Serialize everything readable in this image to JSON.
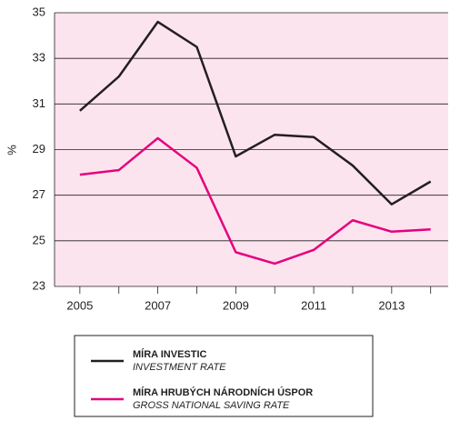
{
  "chart_data": {
    "type": "line",
    "ylabel": "%",
    "x": [
      2005,
      2006,
      2007,
      2008,
      2009,
      2010,
      2011,
      2012,
      2013,
      2014
    ],
    "series": [
      {
        "name": "MÍRA INVESTIC",
        "name_en": "INVESTMENT RATE",
        "color": "#231f20",
        "values": [
          30.7,
          32.2,
          34.6,
          33.5,
          28.7,
          29.65,
          29.55,
          28.3,
          26.6,
          27.6
        ]
      },
      {
        "name": "MÍRA HRUBÝCH NÁRODNÍCH ÚSPOR",
        "name_en": "GROSS NATIONAL SAVING RATE",
        "color": "#e6007e",
        "values": [
          27.9,
          28.1,
          29.5,
          28.2,
          24.5,
          24.0,
          24.6,
          25.9,
          25.4,
          25.5
        ]
      }
    ],
    "xlim": [
      2004.35,
      2014.45
    ],
    "xticks": [
      2005,
      2007,
      2009,
      2011,
      2013
    ],
    "xminorticks": [
      2006,
      2008,
      2010,
      2012,
      2014
    ],
    "ylim": [
      23,
      35
    ],
    "yticks": [
      23,
      25,
      27,
      29,
      31,
      33,
      35
    ],
    "grid": true,
    "background": "#fce4ee",
    "legend": "bottom"
  }
}
